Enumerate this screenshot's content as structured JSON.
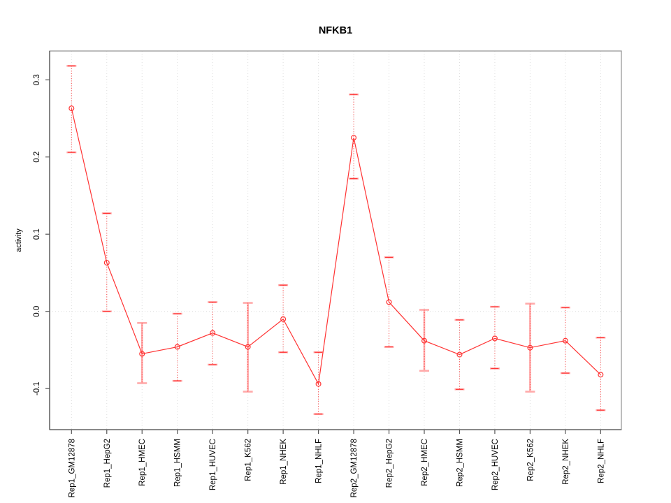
{
  "chart_data": {
    "type": "line",
    "title": "NFKB1",
    "xlabel": "",
    "ylabel": "activity",
    "ylim": [
      -0.153,
      0.337
    ],
    "yticks": [
      0.3,
      0.2,
      0.1,
      0.0,
      -0.1
    ],
    "ytick_labels": [
      "0.3",
      "0.2",
      "0.1",
      "0.0",
      "-0.1"
    ],
    "grid": "dotted vertical gridline per category plus dotted horizontal line at y=0",
    "legend": "none",
    "categories": [
      "Rep1_GM12878",
      "Rep1_HepG2",
      "Rep1_HMEC",
      "Rep1_HSMM",
      "Rep1_HUVEC",
      "Rep1_K562",
      "Rep1_NHEK",
      "Rep1_NHLF",
      "Rep2_GM12878",
      "Rep2_HepG2",
      "Rep2_HMEC",
      "Rep2_HSMM",
      "Rep2_HUVEC",
      "Rep2_K562",
      "Rep2_NHEK",
      "Rep2_NHLF"
    ],
    "series": [
      {
        "name": "activity",
        "marker": "open-circle",
        "points": [
          {
            "label": "Rep1_GM12878",
            "value": 0.263,
            "lower": 0.206,
            "upper": 0.318,
            "bar_style": "dark"
          },
          {
            "label": "Rep1_HepG2",
            "value": 0.063,
            "lower": 0.0,
            "upper": 0.127,
            "bar_style": "dark"
          },
          {
            "label": "Rep1_HMEC",
            "value": -0.055,
            "lower": -0.093,
            "upper": -0.015,
            "bar_style": "light"
          },
          {
            "label": "Rep1_HSMM",
            "value": -0.046,
            "lower": -0.09,
            "upper": -0.003,
            "bar_style": "dark"
          },
          {
            "label": "Rep1_HUVEC",
            "value": -0.028,
            "lower": -0.069,
            "upper": 0.012,
            "bar_style": "dark"
          },
          {
            "label": "Rep1_K562",
            "value": -0.046,
            "lower": -0.104,
            "upper": 0.011,
            "bar_style": "light"
          },
          {
            "label": "Rep1_NHEK",
            "value": -0.01,
            "lower": -0.053,
            "upper": 0.034,
            "bar_style": "dark"
          },
          {
            "label": "Rep1_NHLF",
            "value": -0.094,
            "lower": -0.133,
            "upper": -0.053,
            "bar_style": "dark"
          },
          {
            "label": "Rep2_GM12878",
            "value": 0.225,
            "lower": 0.172,
            "upper": 0.281,
            "bar_style": "dark"
          },
          {
            "label": "Rep2_HepG2",
            "value": 0.012,
            "lower": -0.046,
            "upper": 0.07,
            "bar_style": "dark"
          },
          {
            "label": "Rep2_HMEC",
            "value": -0.038,
            "lower": -0.077,
            "upper": 0.002,
            "bar_style": "light"
          },
          {
            "label": "Rep2_HSMM",
            "value": -0.056,
            "lower": -0.101,
            "upper": -0.011,
            "bar_style": "dark"
          },
          {
            "label": "Rep2_HUVEC",
            "value": -0.035,
            "lower": -0.074,
            "upper": 0.006,
            "bar_style": "dark"
          },
          {
            "label": "Rep2_K562",
            "value": -0.047,
            "lower": -0.104,
            "upper": 0.01,
            "bar_style": "light"
          },
          {
            "label": "Rep2_NHEK",
            "value": -0.038,
            "lower": -0.08,
            "upper": 0.005,
            "bar_style": "dark"
          },
          {
            "label": "Rep2_NHLF",
            "value": -0.082,
            "lower": -0.128,
            "upper": -0.034,
            "bar_style": "dark"
          }
        ]
      }
    ],
    "colors": {
      "series_red": "#ff3333",
      "error_bar_light": "#ffaaaa",
      "gridline": "#dcdcdc",
      "box_border": "#999999",
      "axis_line": "#555555",
      "text": "#000000"
    }
  }
}
